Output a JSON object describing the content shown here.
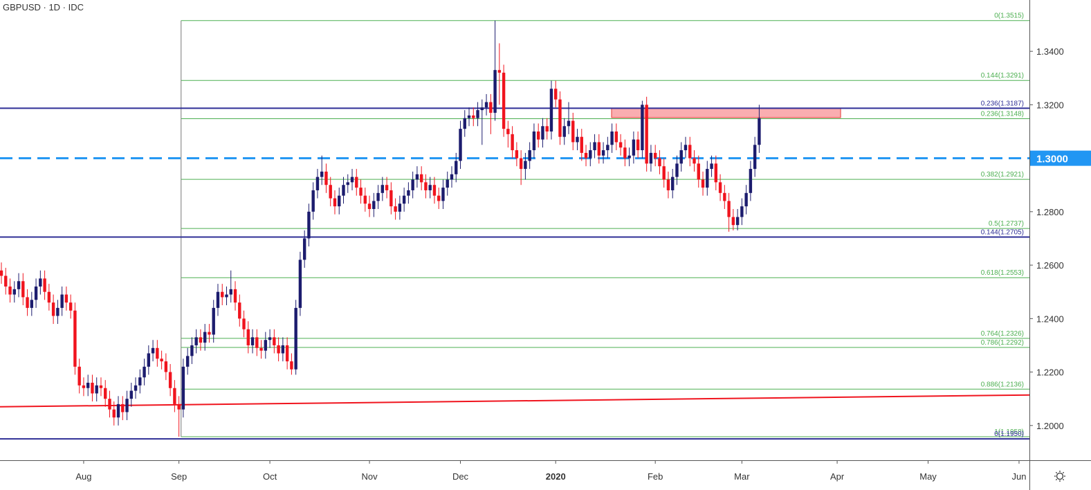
{
  "chart_data": {
    "type": "candlestick",
    "title": "GBPUSD · 1D · IDC",
    "up_color": "#1c1c6e",
    "down_color": "#f0141e",
    "open": [
      1.258,
      1.256,
      1.252,
      1.249,
      1.251,
      1.254,
      1.248,
      1.244,
      1.247,
      1.252,
      1.255,
      1.25,
      1.246,
      1.241,
      1.244,
      1.249,
      1.246,
      1.243,
      1.222,
      1.215,
      1.214,
      1.216,
      1.212,
      1.215,
      1.214,
      1.21,
      1.206,
      1.203,
      1.208,
      1.205,
      1.21,
      1.213,
      1.215,
      1.218,
      1.222,
      1.227,
      1.229,
      1.225,
      1.224,
      1.22,
      1.214,
      1.208,
      1.206,
      1.222,
      1.226,
      1.23,
      1.233,
      1.231,
      1.235,
      1.234,
      1.244,
      1.25,
      1.248,
      1.249,
      1.251,
      1.246,
      1.24,
      1.236,
      1.23,
      1.233,
      1.229,
      1.228,
      1.232,
      1.233,
      1.23,
      1.227,
      1.23,
      1.224,
      1.221,
      1.244,
      1.262,
      1.27,
      1.28,
      1.288,
      1.293,
      1.295,
      1.29,
      1.285,
      1.282,
      1.286,
      1.29,
      1.291,
      1.293,
      1.289,
      1.286,
      1.283,
      1.281,
      1.284,
      1.287,
      1.29,
      1.288,
      1.282,
      1.28,
      1.283,
      1.286,
      1.288,
      1.292,
      1.294,
      1.291,
      1.288,
      1.29,
      1.286,
      1.284,
      1.289,
      1.292,
      1.294,
      1.299,
      1.311,
      1.315,
      1.316,
      1.315,
      1.318,
      1.319,
      1.321,
      1.317,
      1.333,
      1.332,
      1.311,
      1.309,
      1.303,
      1.3,
      1.296,
      1.299,
      1.303,
      1.31,
      1.307,
      1.312,
      1.31,
      1.326,
      1.322,
      1.308,
      1.312,
      1.314,
      1.306,
      1.308,
      1.302,
      1.3,
      1.303,
      1.306,
      1.301,
      1.303,
      1.305,
      1.31,
      1.306,
      1.304,
      1.3,
      1.301,
      1.307,
      1.303,
      1.32,
      1.298,
      1.302,
      1.3,
      1.297,
      1.292,
      1.288,
      1.293,
      1.298,
      1.303,
      1.305,
      1.3,
      1.298,
      1.292,
      1.289,
      1.296,
      1.298,
      1.291,
      1.287,
      1.284,
      1.278,
      1.275,
      1.278,
      1.282,
      1.287,
      1.296,
      1.305
    ],
    "high": [
      1.261,
      1.259,
      1.255,
      1.254,
      1.257,
      1.257,
      1.251,
      1.25,
      1.255,
      1.258,
      1.258,
      1.253,
      1.249,
      1.247,
      1.252,
      1.252,
      1.249,
      1.246,
      1.225,
      1.218,
      1.219,
      1.219,
      1.218,
      1.218,
      1.217,
      1.213,
      1.209,
      1.211,
      1.211,
      1.213,
      1.216,
      1.218,
      1.221,
      1.225,
      1.23,
      1.232,
      1.232,
      1.228,
      1.227,
      1.223,
      1.217,
      1.211,
      1.225,
      1.229,
      1.233,
      1.236,
      1.236,
      1.238,
      1.238,
      1.247,
      1.253,
      1.253,
      1.252,
      1.258,
      1.254,
      1.249,
      1.243,
      1.239,
      1.236,
      1.236,
      1.232,
      1.235,
      1.236,
      1.236,
      1.233,
      1.233,
      1.233,
      1.227,
      1.247,
      1.265,
      1.273,
      1.283,
      1.291,
      1.296,
      1.301,
      1.298,
      1.293,
      1.288,
      1.289,
      1.293,
      1.294,
      1.296,
      1.296,
      1.292,
      1.289,
      1.286,
      1.287,
      1.29,
      1.293,
      1.293,
      1.291,
      1.285,
      1.286,
      1.289,
      1.291,
      1.295,
      1.297,
      1.297,
      1.294,
      1.293,
      1.293,
      1.289,
      1.292,
      1.295,
      1.297,
      1.302,
      1.314,
      1.318,
      1.319,
      1.319,
      1.321,
      1.322,
      1.324,
      1.324,
      1.3515,
      1.343,
      1.335,
      1.314,
      1.312,
      1.306,
      1.303,
      1.302,
      1.306,
      1.313,
      1.313,
      1.315,
      1.315,
      1.329,
      1.329,
      1.325,
      1.315,
      1.321,
      1.317,
      1.311,
      1.311,
      1.305,
      1.306,
      1.309,
      1.309,
      1.306,
      1.308,
      1.313,
      1.313,
      1.309,
      1.307,
      1.304,
      1.31,
      1.31,
      1.3215,
      1.323,
      1.305,
      1.305,
      1.303,
      1.3,
      1.295,
      1.296,
      1.301,
      1.306,
      1.308,
      1.308,
      1.303,
      1.301,
      1.295,
      1.299,
      1.301,
      1.301,
      1.294,
      1.29,
      1.287,
      1.281,
      1.281,
      1.285,
      1.29,
      1.299,
      1.308,
      1.32
    ],
    "low": [
      1.253,
      1.249,
      1.246,
      1.246,
      1.248,
      1.245,
      1.241,
      1.241,
      1.244,
      1.249,
      1.247,
      1.243,
      1.238,
      1.238,
      1.241,
      1.243,
      1.24,
      1.219,
      1.212,
      1.211,
      1.211,
      1.209,
      1.209,
      1.211,
      1.207,
      1.203,
      1.2,
      1.2,
      1.202,
      1.202,
      1.207,
      1.21,
      1.212,
      1.215,
      1.219,
      1.224,
      1.222,
      1.221,
      1.217,
      1.211,
      1.205,
      1.1958,
      1.203,
      1.219,
      1.223,
      1.227,
      1.228,
      1.228,
      1.231,
      1.231,
      1.241,
      1.245,
      1.245,
      1.246,
      1.243,
      1.237,
      1.233,
      1.227,
      1.227,
      1.226,
      1.225,
      1.225,
      1.229,
      1.227,
      1.224,
      1.224,
      1.221,
      1.219,
      1.219,
      1.241,
      1.259,
      1.267,
      1.277,
      1.285,
      1.29,
      1.287,
      1.282,
      1.279,
      1.279,
      1.283,
      1.287,
      1.288,
      1.286,
      1.283,
      1.28,
      1.278,
      1.278,
      1.281,
      1.284,
      1.285,
      1.279,
      1.277,
      1.277,
      1.28,
      1.283,
      1.285,
      1.289,
      1.288,
      1.285,
      1.285,
      1.283,
      1.281,
      1.281,
      1.286,
      1.289,
      1.291,
      1.296,
      1.308,
      1.312,
      1.312,
      1.312,
      1.305,
      1.316,
      1.309,
      1.314,
      1.32,
      1.308,
      1.304,
      1.3,
      1.297,
      1.29,
      1.292,
      1.296,
      1.3,
      1.304,
      1.304,
      1.307,
      1.307,
      1.319,
      1.305,
      1.305,
      1.309,
      1.303,
      1.303,
      1.299,
      1.297,
      1.297,
      1.3,
      1.298,
      1.298,
      1.3,
      1.302,
      1.303,
      1.301,
      1.297,
      1.297,
      1.298,
      1.3,
      1.3,
      1.295,
      1.295,
      1.297,
      1.294,
      1.289,
      1.285,
      1.285,
      1.29,
      1.295,
      1.3,
      1.297,
      1.295,
      1.289,
      1.286,
      1.286,
      1.293,
      1.288,
      1.284,
      1.281,
      1.2725,
      1.273,
      1.273,
      1.275,
      1.279,
      1.284,
      1.293,
      1.302
    ],
    "close": [
      1.256,
      1.252,
      1.249,
      1.251,
      1.254,
      1.248,
      1.244,
      1.247,
      1.252,
      1.255,
      1.25,
      1.246,
      1.241,
      1.244,
      1.249,
      1.246,
      1.243,
      1.222,
      1.215,
      1.214,
      1.216,
      1.212,
      1.215,
      1.214,
      1.21,
      1.206,
      1.203,
      1.208,
      1.205,
      1.21,
      1.213,
      1.215,
      1.218,
      1.222,
      1.227,
      1.229,
      1.225,
      1.224,
      1.22,
      1.214,
      1.208,
      1.206,
      1.222,
      1.226,
      1.23,
      1.233,
      1.231,
      1.235,
      1.234,
      1.244,
      1.25,
      1.248,
      1.249,
      1.251,
      1.246,
      1.24,
      1.236,
      1.23,
      1.233,
      1.229,
      1.228,
      1.232,
      1.233,
      1.23,
      1.227,
      1.23,
      1.224,
      1.221,
      1.244,
      1.262,
      1.27,
      1.28,
      1.288,
      1.293,
      1.295,
      1.29,
      1.285,
      1.282,
      1.286,
      1.29,
      1.291,
      1.293,
      1.289,
      1.286,
      1.283,
      1.281,
      1.284,
      1.287,
      1.29,
      1.288,
      1.282,
      1.28,
      1.283,
      1.286,
      1.288,
      1.292,
      1.294,
      1.291,
      1.288,
      1.29,
      1.286,
      1.284,
      1.289,
      1.292,
      1.294,
      1.299,
      1.311,
      1.315,
      1.316,
      1.315,
      1.318,
      1.319,
      1.321,
      1.317,
      1.333,
      1.332,
      1.311,
      1.309,
      1.303,
      1.3,
      1.296,
      1.299,
      1.303,
      1.31,
      1.307,
      1.312,
      1.31,
      1.326,
      1.322,
      1.308,
      1.312,
      1.314,
      1.306,
      1.308,
      1.302,
      1.3,
      1.303,
      1.306,
      1.301,
      1.303,
      1.305,
      1.31,
      1.306,
      1.304,
      1.3,
      1.301,
      1.307,
      1.303,
      1.32,
      1.298,
      1.302,
      1.3,
      1.297,
      1.292,
      1.288,
      1.293,
      1.298,
      1.303,
      1.305,
      1.3,
      1.298,
      1.292,
      1.289,
      1.296,
      1.298,
      1.291,
      1.287,
      1.284,
      1.278,
      1.275,
      1.278,
      1.282,
      1.287,
      1.296,
      1.305,
      1.315
    ],
    "xlim": [
      -0.32,
      237.4
    ],
    "ylim": [
      1.187,
      1.3592
    ],
    "yticks": [
      {
        "value": 1.2,
        "label": "1.2000"
      },
      {
        "value": 1.22,
        "label": "1.2200"
      },
      {
        "value": 1.24,
        "label": "1.2400"
      },
      {
        "value": 1.26,
        "label": "1.2600"
      },
      {
        "value": 1.28,
        "label": "1.2800"
      },
      {
        "value": 1.3,
        "label": "1.3000"
      },
      {
        "value": 1.32,
        "label": "1.3200"
      },
      {
        "value": 1.34,
        "label": "1.3400"
      }
    ],
    "xticks": [
      {
        "value": 19,
        "label": "Aug"
      },
      {
        "value": 41,
        "label": "Sep"
      },
      {
        "value": 62,
        "label": "Oct"
      },
      {
        "value": 85,
        "label": "Nov"
      },
      {
        "value": 106,
        "label": "Dec"
      },
      {
        "value": 128,
        "label": "2020"
      },
      {
        "value": 151,
        "label": "Feb"
      },
      {
        "value": 171,
        "label": "Mar"
      },
      {
        "value": 193,
        "label": "Apr"
      },
      {
        "value": 214,
        "label": "May"
      },
      {
        "value": 235,
        "label": "Jun"
      }
    ],
    "highlight_level": {
      "value": 1.3,
      "label": "1.3000",
      "color": "#2196f3"
    },
    "fib_anchor_x": 41.5,
    "fib_color": "#4caf50",
    "fib_levels": [
      {
        "value": 1.3515,
        "label": "0(1.3515)"
      },
      {
        "value": 1.3291,
        "label": "0.144(1.3291)"
      },
      {
        "value": 1.3148,
        "label": "0.236(1.3148)"
      },
      {
        "value": 1.2921,
        "label": "0.382(1.2921)"
      },
      {
        "value": 1.2737,
        "label": "0.5(1.2737)"
      },
      {
        "value": 1.2553,
        "label": "0.618(1.2553)"
      },
      {
        "value": 1.2326,
        "label": "0.764(1.2326)"
      },
      {
        "value": 1.2292,
        "label": "0.786(1.2292)"
      },
      {
        "value": 1.2136,
        "label": "0.886(1.2136)"
      },
      {
        "value": 1.1958,
        "label": "1(1.1958)"
      }
    ],
    "fib2_color": "#2e2e96",
    "fib2_levels": [
      {
        "value": 1.3187,
        "label": "0.236(1.3187)"
      },
      {
        "value": 1.2705,
        "label": "0.144(1.2705)"
      },
      {
        "value": 1.195,
        "label": "0(1.1950)"
      }
    ],
    "trendline": {
      "color": "#f0141e",
      "x": [
        -0.32,
        237.4
      ],
      "y": [
        1.207,
        1.2114
      ]
    },
    "zone": {
      "x": [
        140.9,
        193.8
      ],
      "y": [
        1.3152,
        1.3188
      ]
    }
  }
}
